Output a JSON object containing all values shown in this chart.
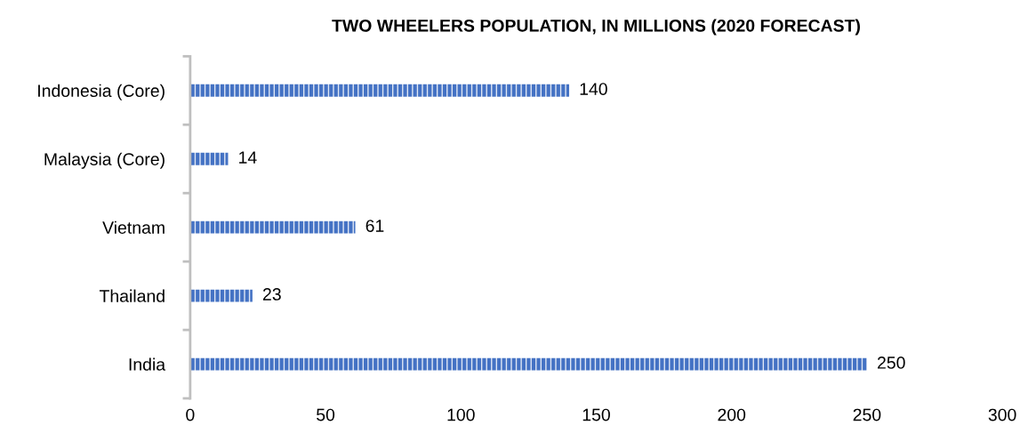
{
  "chart_data": {
    "type": "bar",
    "orientation": "horizontal",
    "title": "TWO WHEELERS POPULATION, IN MILLIONS (2020 FORECAST)",
    "categories": [
      "Indonesia (Core)",
      "Malaysia (Core)",
      "Vietnam",
      "Thailand",
      "India"
    ],
    "values": [
      140,
      14,
      61,
      23,
      250
    ],
    "color": "#4472c4",
    "xlim": [
      0,
      300
    ],
    "xticks": [
      0,
      50,
      100,
      150,
      200,
      250,
      300
    ],
    "data_labels": true,
    "grid": false,
    "legend": false
  }
}
